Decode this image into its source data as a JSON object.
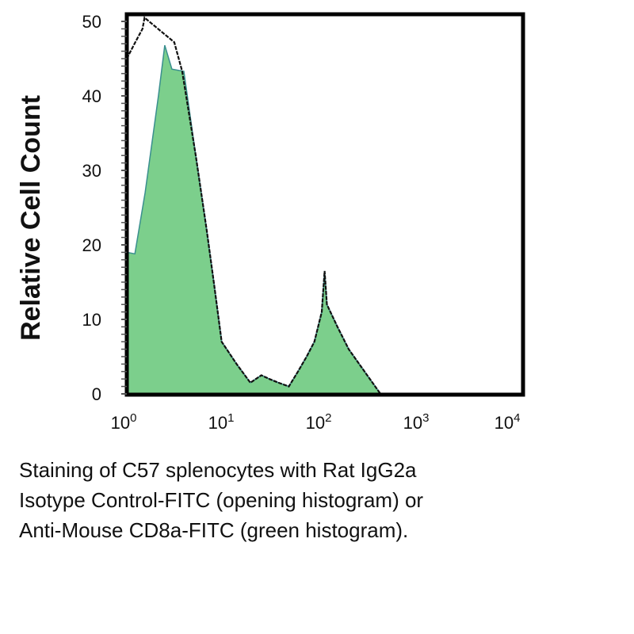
{
  "chart_data": {
    "type": "area",
    "title": "",
    "xlabel": "",
    "ylabel": "Relative Cell Count",
    "xscale": "log",
    "xlim": [
      1,
      10000
    ],
    "ylim": [
      0,
      50
    ],
    "x_ticks": [
      {
        "base": "10",
        "exp": "0",
        "value": 1
      },
      {
        "base": "10",
        "exp": "1",
        "value": 10
      },
      {
        "base": "10",
        "exp": "2",
        "value": 100
      },
      {
        "base": "10",
        "exp": "3",
        "value": 1000
      },
      {
        "base": "10",
        "exp": "4",
        "value": 10000
      }
    ],
    "y_ticks": [
      "0",
      "10",
      "20",
      "30",
      "40",
      "50"
    ],
    "grid": false,
    "series": [
      {
        "name": "Anti-Mouse CD8a-FITC",
        "style": "filled",
        "color": "#7ccf8c",
        "x": [
          1,
          1.21,
          1.54,
          2.11,
          2.45,
          2.9,
          3.85,
          5.1,
          6.6,
          7.9,
          9.4,
          13.4,
          18.5,
          24,
          29,
          36,
          46,
          57,
          70,
          84,
          100,
          107,
          113,
          145,
          189,
          275,
          400
        ],
        "y": [
          19,
          18.8,
          27,
          40,
          46.8,
          43.6,
          43.3,
          32,
          22,
          14.5,
          7,
          4,
          1.5,
          2.5,
          2,
          1.5,
          1,
          3,
          5,
          7,
          11,
          16.5,
          12,
          9,
          6,
          3,
          0
        ]
      },
      {
        "name": "Rat IgG2a Isotype Control-FITC",
        "style": "open",
        "color": "#111111",
        "x": [
          1,
          1.2,
          1.45,
          1.52,
          3.07,
          3.7,
          5.1,
          6.6,
          7.9,
          9.4,
          13.4,
          18.5,
          24,
          29,
          36,
          46,
          57,
          70,
          84,
          100,
          107,
          113,
          145,
          189,
          275,
          400
        ],
        "y": [
          45,
          47,
          49,
          50.5,
          47.2,
          43.3,
          32,
          22,
          14.5,
          7,
          4,
          1.5,
          2.5,
          2,
          1.5,
          1,
          3,
          5,
          7,
          11,
          16.5,
          12,
          9,
          6,
          3,
          0
        ]
      }
    ]
  },
  "caption": [
    "Staining of C57 splenocytes with Rat IgG2a",
    "Isotype Control-FITC (opening histogram) or",
    "Anti-Mouse CD8a-FITC (green histogram)."
  ]
}
